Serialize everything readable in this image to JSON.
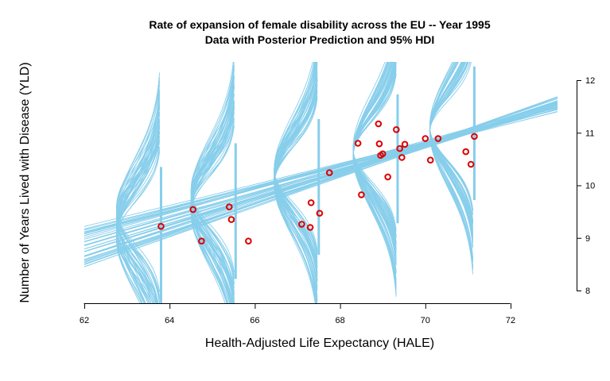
{
  "chart_data": {
    "type": "scatter",
    "title": "Rate of expansion of female disability across the EU -- Year 1995",
    "subtitle": "Data with Posterior Prediction and 95% HDI",
    "xlabel": "Health-Adjusted Life Expectancy (HALE)",
    "ylabel": "Number of Years Lived with Disease (YLD)",
    "xlim": [
      62,
      72
    ],
    "ylim": [
      8,
      12
    ],
    "x_ticks": [
      "62",
      "64",
      "66",
      "68",
      "70",
      "72"
    ],
    "y_ticks": [
      "8",
      "9",
      "10",
      "11",
      "12"
    ],
    "y_axis_side": "right",
    "grid": false,
    "legend": "none",
    "colors": {
      "posterior": "#87ceeb",
      "points": "#dd0000"
    },
    "points": {
      "x": [
        63.8,
        64.55,
        64.75,
        65.4,
        65.45,
        65.85,
        67.1,
        67.3,
        67.32,
        67.52,
        67.75,
        68.42,
        68.5,
        68.9,
        68.92,
        68.95,
        69.0,
        69.12,
        69.32,
        69.4,
        69.45,
        69.52,
        70.0,
        70.12,
        70.3,
        70.95,
        71.07,
        71.15
      ],
      "y": [
        9.22,
        9.54,
        8.94,
        9.59,
        9.35,
        8.94,
        9.26,
        9.2,
        9.67,
        9.47,
        10.24,
        10.8,
        9.82,
        11.17,
        10.79,
        10.57,
        10.6,
        10.16,
        11.06,
        10.7,
        10.53,
        10.78,
        10.89,
        10.48,
        10.89,
        10.64,
        10.4,
        10.93
      ]
    },
    "posterior_lines": {
      "count": 40,
      "x_range": [
        62,
        73.1
      ],
      "intercept_at_x62": {
        "min": 8.42,
        "max": 9.22
      },
      "slope": {
        "min": 0.2,
        "max": 0.29
      }
    },
    "hdi_bars": [
      {
        "x": 63.8,
        "y_low": 7.76,
        "y_high": 10.35
      },
      {
        "x": 65.55,
        "y_low": 8.22,
        "y_high": 10.8
      },
      {
        "x": 67.5,
        "y_low": 8.68,
        "y_high": 11.26
      },
      {
        "x": 69.35,
        "y_low": 9.28,
        "y_high": 11.73
      },
      {
        "x": 71.15,
        "y_low": 9.72,
        "y_high": 12.26
      }
    ]
  }
}
